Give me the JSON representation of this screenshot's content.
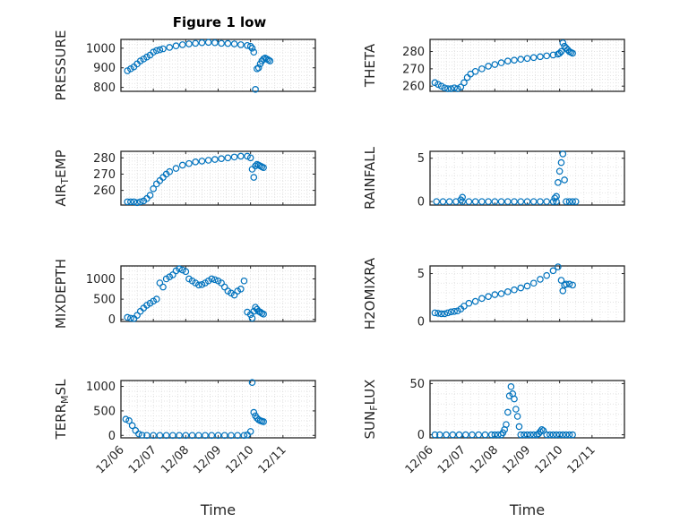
{
  "figure": {
    "title": "Figure 1 low",
    "marker_color": "#0072BD",
    "time_ticks": [
      "12/06",
      "12/07",
      "12/08",
      "12/09",
      "12/10",
      "12/11"
    ],
    "xlabel": "Time"
  },
  "chart_data": [
    {
      "type": "scatter",
      "ylabel": "PRESSURE",
      "ylim": [
        780,
        1045
      ],
      "yticks": [
        800,
        900,
        1000
      ],
      "xlim": [
        0,
        6
      ],
      "grid": true,
      "x": [
        0.2,
        0.3,
        0.4,
        0.5,
        0.6,
        0.7,
        0.8,
        0.9,
        1.0,
        1.1,
        1.2,
        1.3,
        1.5,
        1.7,
        1.9,
        2.1,
        2.3,
        2.5,
        2.7,
        2.9,
        3.1,
        3.3,
        3.5,
        3.7,
        3.9,
        4.0,
        4.05,
        4.1,
        4.15,
        4.2,
        4.25,
        4.3,
        4.35,
        4.4,
        4.45,
        4.5,
        4.55,
        4.6
      ],
      "y": [
        885,
        895,
        905,
        920,
        935,
        945,
        955,
        965,
        980,
        988,
        992,
        997,
        1004,
        1012,
        1018,
        1022,
        1025,
        1028,
        1030,
        1028,
        1025,
        1024,
        1022,
        1018,
        1014,
        1010,
        1000,
        980,
        790,
        895,
        900,
        920,
        935,
        945,
        950,
        945,
        940,
        935
      ]
    },
    {
      "type": "scatter",
      "ylabel": "THETA",
      "ylim": [
        257,
        287
      ],
      "yticks": [
        260,
        270,
        280
      ],
      "xlim": [
        0,
        6
      ],
      "grid": true,
      "x": [
        0.15,
        0.25,
        0.35,
        0.45,
        0.55,
        0.65,
        0.75,
        0.85,
        0.95,
        1.05,
        1.15,
        1.25,
        1.4,
        1.6,
        1.8,
        2.0,
        2.2,
        2.4,
        2.6,
        2.8,
        3.0,
        3.2,
        3.4,
        3.6,
        3.8,
        3.95,
        4.0,
        4.05,
        4.1,
        4.15,
        4.2,
        4.25,
        4.3,
        4.35,
        4.4
      ],
      "y": [
        262,
        261,
        260,
        259,
        258.5,
        258.5,
        259,
        258.5,
        259.5,
        262,
        265,
        267,
        268.5,
        270,
        271.5,
        272.5,
        273.5,
        274.5,
        275,
        275.5,
        276,
        276.5,
        277,
        277.5,
        278,
        278.5,
        279,
        280,
        285,
        283,
        282,
        281,
        280,
        279.5,
        279
      ]
    },
    {
      "type": "scatter",
      "ylabel": "AIR_TEMP",
      "ylim": [
        251,
        284
      ],
      "yticks": [
        260,
        270,
        280
      ],
      "xlim": [
        0,
        6
      ],
      "grid": true,
      "x": [
        0.2,
        0.3,
        0.4,
        0.5,
        0.6,
        0.7,
        0.8,
        0.9,
        1.0,
        1.1,
        1.2,
        1.3,
        1.4,
        1.5,
        1.7,
        1.9,
        2.1,
        2.3,
        2.5,
        2.7,
        2.9,
        3.1,
        3.3,
        3.5,
        3.7,
        3.9,
        4.0,
        4.05,
        4.1,
        4.15,
        4.2,
        4.25,
        4.3,
        4.35,
        4.4
      ],
      "y": [
        253,
        253,
        253,
        252.5,
        253,
        253.5,
        255,
        257,
        261,
        264,
        266,
        268,
        270,
        271.5,
        273.5,
        275.5,
        276.5,
        277.5,
        278,
        278.5,
        279,
        279.5,
        280,
        280.5,
        281,
        281,
        280,
        273,
        268,
        275,
        276,
        275.5,
        275,
        274.5,
        274
      ]
    },
    {
      "type": "scatter",
      "ylabel": "RAINFALL",
      "ylim": [
        -0.4,
        5.8
      ],
      "yticks": [
        0,
        5
      ],
      "xlim": [
        0,
        6
      ],
      "grid": true,
      "x": [
        0.2,
        0.4,
        0.6,
        0.8,
        1.0,
        1.2,
        1.4,
        1.6,
        1.8,
        2.0,
        2.2,
        2.4,
        2.6,
        2.8,
        3.0,
        3.2,
        3.4,
        3.6,
        3.8,
        3.9,
        3.95,
        4.0,
        4.05,
        4.1,
        4.15,
        4.2,
        4.3,
        4.4,
        4.5,
        0.95,
        1.0,
        3.85,
        3.9
      ],
      "y": [
        0,
        0,
        0,
        0,
        0,
        0,
        0,
        0,
        0,
        0,
        0,
        0,
        0,
        0,
        0,
        0,
        0,
        0,
        0,
        0,
        2.2,
        3.5,
        4.5,
        5.5,
        2.5,
        0,
        0,
        0,
        0,
        0.2,
        0.5,
        0.4,
        0.6
      ]
    },
    {
      "type": "scatter",
      "ylabel": "MIXDEPTH",
      "ylim": [
        -50,
        1320
      ],
      "yticks": [
        0,
        500,
        1000
      ],
      "xlim": [
        0,
        6
      ],
      "grid": true,
      "x": [
        0.2,
        0.3,
        0.4,
        0.5,
        0.6,
        0.7,
        0.8,
        0.9,
        1.0,
        1.1,
        1.2,
        1.3,
        1.4,
        1.5,
        1.6,
        1.7,
        1.8,
        1.9,
        2.0,
        2.1,
        2.2,
        2.3,
        2.4,
        2.5,
        2.6,
        2.7,
        2.8,
        2.9,
        3.0,
        3.1,
        3.2,
        3.3,
        3.4,
        3.5,
        3.6,
        3.7,
        3.8,
        3.9,
        4.0,
        4.05,
        4.1,
        4.15,
        4.2,
        4.25,
        4.3,
        4.35,
        4.4
      ],
      "y": [
        50,
        30,
        20,
        100,
        200,
        280,
        350,
        400,
        450,
        500,
        900,
        800,
        1000,
        1050,
        1100,
        1200,
        1250,
        1220,
        1180,
        1000,
        950,
        900,
        850,
        860,
        900,
        950,
        1000,
        980,
        950,
        900,
        800,
        700,
        650,
        600,
        700,
        750,
        950,
        180,
        120,
        30,
        200,
        300,
        250,
        200,
        180,
        150,
        130
      ]
    },
    {
      "type": "scatter",
      "ylabel": "H2OMIXRA",
      "ylim": [
        0,
        5.8
      ],
      "yticks": [
        0,
        5
      ],
      "xlim": [
        0,
        6
      ],
      "grid": true,
      "x": [
        0.15,
        0.25,
        0.35,
        0.45,
        0.55,
        0.65,
        0.75,
        0.85,
        0.95,
        1.05,
        1.2,
        1.4,
        1.6,
        1.8,
        2.0,
        2.2,
        2.4,
        2.6,
        2.8,
        3.0,
        3.2,
        3.4,
        3.6,
        3.8,
        3.95,
        4.05,
        4.1,
        4.15,
        4.2,
        4.3,
        4.4
      ],
      "y": [
        0.9,
        0.85,
        0.8,
        0.8,
        0.9,
        1.0,
        1.05,
        1.1,
        1.3,
        1.6,
        1.9,
        2.1,
        2.4,
        2.6,
        2.8,
        2.9,
        3.1,
        3.3,
        3.5,
        3.7,
        4.0,
        4.4,
        4.8,
        5.3,
        5.7,
        4.3,
        3.2,
        3.8,
        3.9,
        3.9,
        3.8
      ]
    },
    {
      "type": "scatter",
      "ylabel": "TERR_MSL",
      "ylim": [
        -50,
        1120
      ],
      "yticks": [
        0,
        500,
        1000
      ],
      "xlim": [
        0,
        6
      ],
      "grid": true,
      "x": [
        0.15,
        0.25,
        0.35,
        0.45,
        0.55,
        0.65,
        0.8,
        1.0,
        1.2,
        1.4,
        1.6,
        1.8,
        2.0,
        2.2,
        2.4,
        2.6,
        2.8,
        3.0,
        3.2,
        3.4,
        3.6,
        3.8,
        3.9,
        4.0,
        4.05,
        4.1,
        4.15,
        4.2,
        4.25,
        4.3,
        4.35,
        4.4
      ],
      "y": [
        330,
        300,
        200,
        100,
        30,
        5,
        0,
        0,
        0,
        0,
        0,
        0,
        0,
        0,
        0,
        0,
        0,
        0,
        0,
        0,
        0,
        0,
        10,
        80,
        1080,
        470,
        400,
        350,
        320,
        300,
        290,
        280
      ]
    },
    {
      "type": "scatter",
      "ylabel": "SUN_FLUX",
      "ylim": [
        -3,
        53
      ],
      "yticks": [
        0,
        50
      ],
      "xlim": [
        0,
        6
      ],
      "grid": true,
      "x": [
        0.15,
        0.3,
        0.5,
        0.7,
        0.9,
        1.1,
        1.3,
        1.5,
        1.7,
        1.9,
        2.0,
        2.1,
        2.2,
        2.25,
        2.3,
        2.35,
        2.4,
        2.45,
        2.5,
        2.55,
        2.6,
        2.65,
        2.7,
        2.75,
        2.8,
        2.9,
        3.0,
        3.1,
        3.2,
        3.3,
        3.35,
        3.4,
        3.45,
        3.5,
        3.6,
        3.7,
        3.8,
        3.9,
        4.0,
        4.1,
        4.2,
        4.3,
        4.4
      ],
      "y": [
        0,
        0,
        0,
        0,
        0,
        0,
        0,
        0,
        0,
        0,
        0,
        0,
        0,
        2,
        5,
        10,
        22,
        38,
        47,
        40,
        35,
        25,
        18,
        8,
        0,
        0,
        0,
        0,
        0,
        0,
        1,
        3,
        5,
        4,
        0,
        0,
        0,
        0,
        0,
        0,
        0,
        0,
        0
      ]
    }
  ]
}
